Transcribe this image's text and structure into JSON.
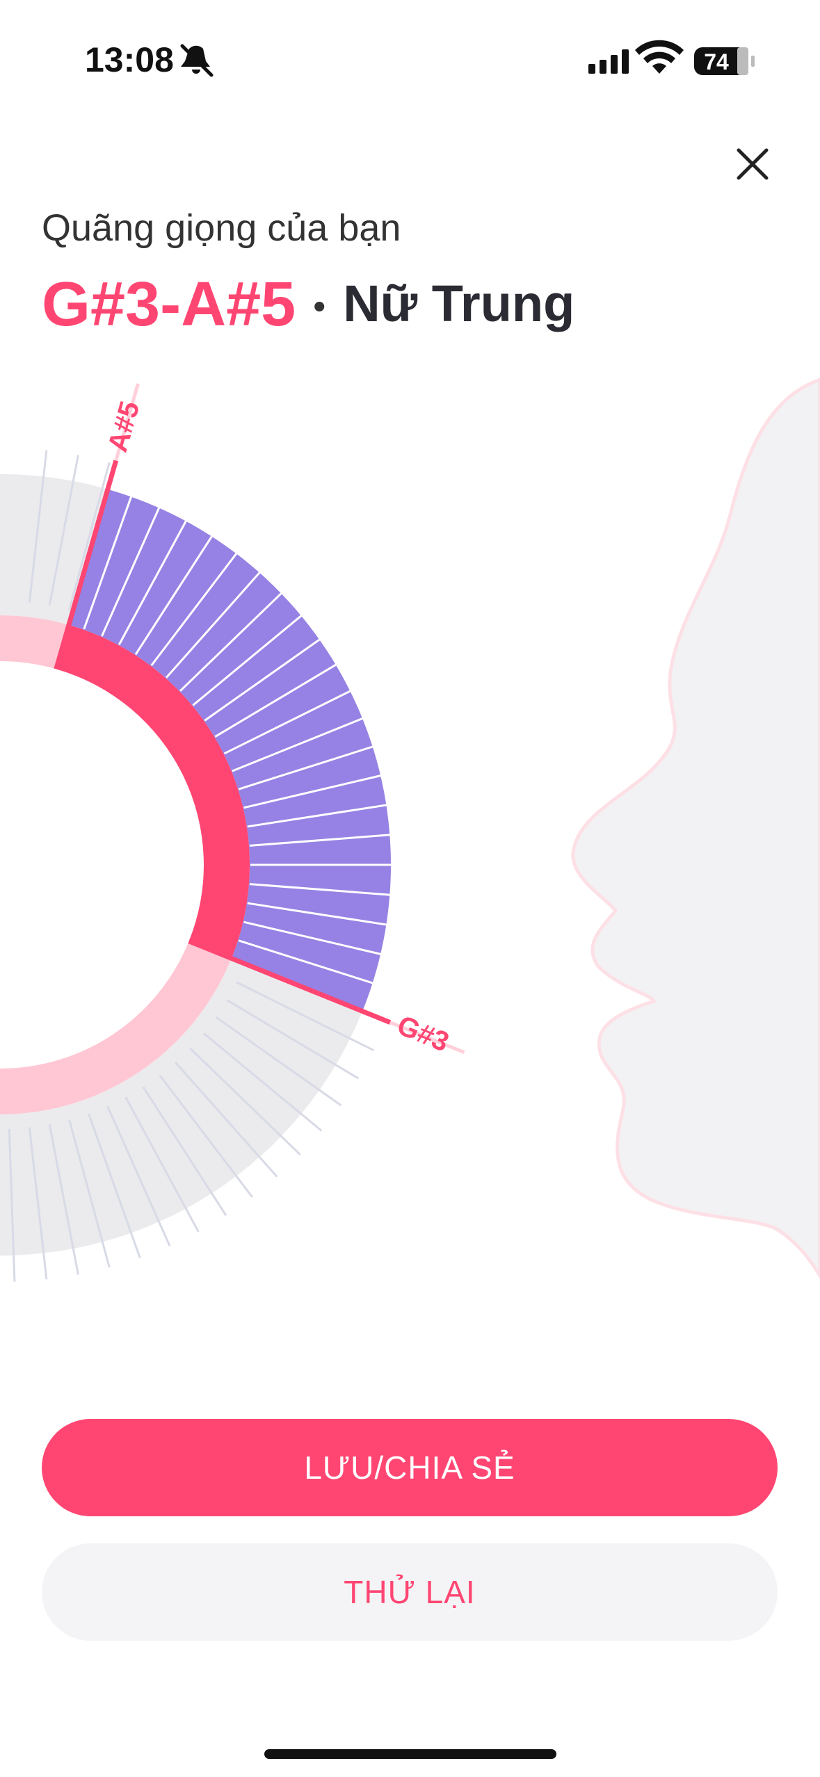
{
  "status_bar": {
    "time": "13:08",
    "battery": "74"
  },
  "header": {
    "subtitle": "Quãng giọng của bạn",
    "range": "G#3-A#5",
    "voice_type": "Nữ Trung"
  },
  "wheel": {
    "high_label": "A#5",
    "low_label": "G#3"
  },
  "buttons": {
    "primary": "LƯU/CHIA SẺ",
    "secondary": "THỬ LẠI"
  }
}
